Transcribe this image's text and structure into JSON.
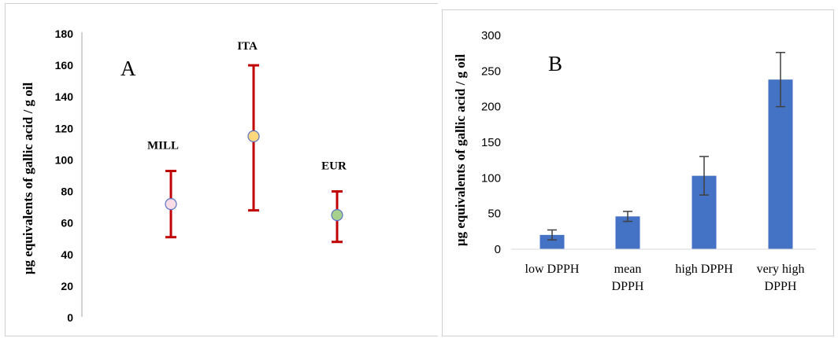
{
  "chart_data": [
    {
      "type": "scatter",
      "panel_label": "A",
      "ylabel": "µg equivalents of gallic acid / g oil",
      "ylim": [
        0,
        180
      ],
      "yticks": [
        0,
        20,
        40,
        60,
        80,
        100,
        120,
        140,
        160,
        180
      ],
      "grid": false,
      "points": [
        {
          "label": "MILL",
          "value": 72,
          "low": 51,
          "high": 93,
          "color": "#f9dce5"
        },
        {
          "label": "ITA",
          "value": 115,
          "low": 68,
          "high": 160,
          "color": "#ffd77d"
        },
        {
          "label": "EUR",
          "value": 65,
          "low": 48,
          "high": 80,
          "color": "#a8d08d"
        }
      ],
      "marker_edge_color": "#5b73c4",
      "errorbar_color": "#c00000"
    },
    {
      "type": "bar",
      "panel_label": "B",
      "ylabel": "µg equivalents of gallic acid / g oil",
      "ylim": [
        0,
        300
      ],
      "yticks": [
        0,
        50,
        100,
        150,
        200,
        250,
        300
      ],
      "grid": false,
      "categories": [
        [
          "low DPPH"
        ],
        [
          "mean",
          "DPPH"
        ],
        [
          "high DPPH"
        ],
        [
          "very high",
          "DPPH"
        ]
      ],
      "values": [
        20,
        46,
        103,
        238
      ],
      "errors": [
        7,
        7,
        27,
        38
      ],
      "bar_color": "#4472c4",
      "errorbar_color": "#404040"
    }
  ]
}
